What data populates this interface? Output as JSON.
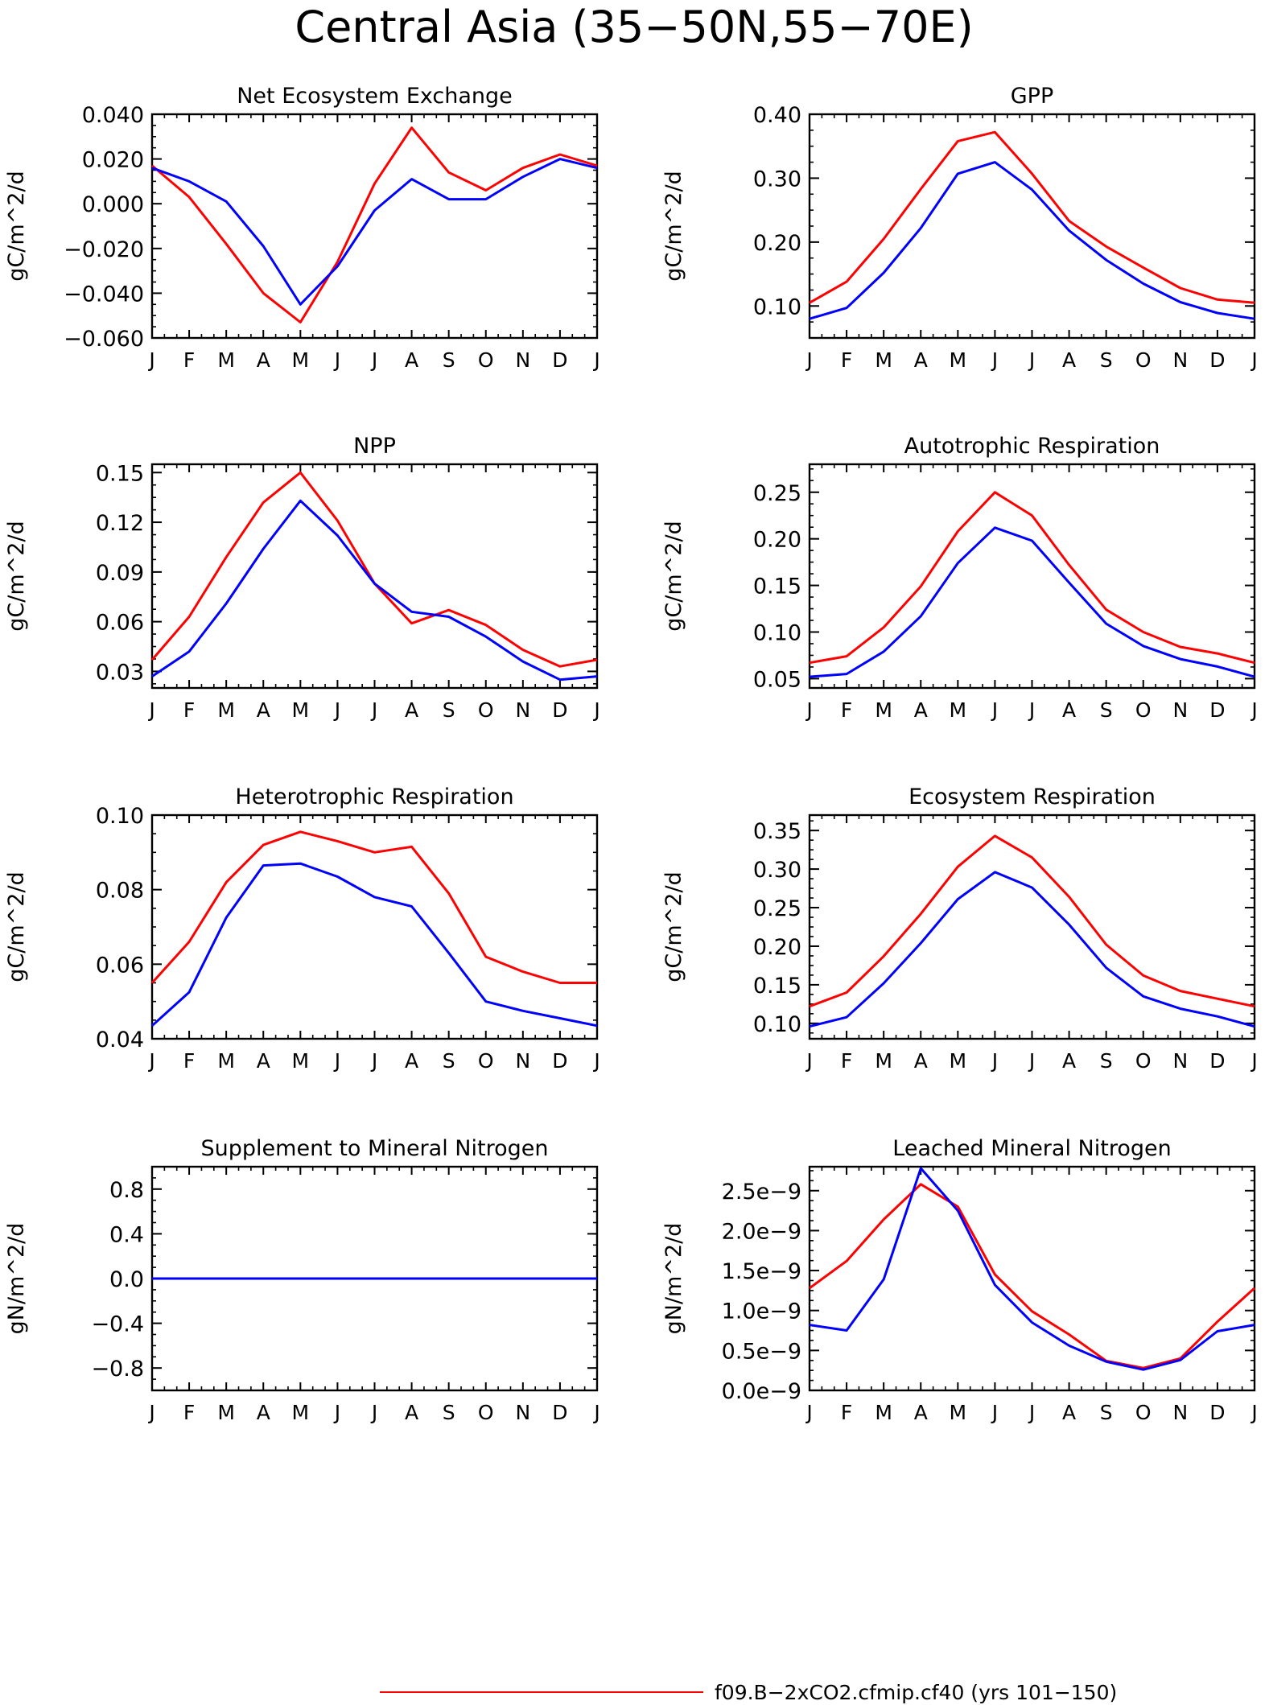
{
  "figure_title": "Central Asia (35−50N,55−70E)",
  "months": [
    "J",
    "F",
    "M",
    "A",
    "M",
    "J",
    "J",
    "A",
    "S",
    "O",
    "N",
    "D",
    "J"
  ],
  "legend": {
    "entries": [
      {
        "label": "f09.B−2xCO2.cfmip.cf40 (yrs 101−150)",
        "color": "#ff0000"
      }
    ]
  },
  "colors": {
    "series_a": "#ff0000",
    "series_b": "#0000ff",
    "axis": "#000000"
  },
  "chart_data": [
    {
      "type": "line",
      "title": "Net Ecosystem Exchange",
      "ylabel": "gC/m^2/d",
      "ylim": [
        -0.06,
        0.04
      ],
      "yticks": [
        -0.06,
        -0.04,
        -0.02,
        0.0,
        0.02,
        0.04
      ],
      "ytick_labels": [
        "−0.060",
        "−0.040",
        "−0.020",
        "0.000",
        "0.020",
        "0.040"
      ],
      "series": [
        {
          "color": "#ff0000",
          "values": [
            0.017,
            0.003,
            -0.018,
            -0.04,
            -0.053,
            -0.026,
            0.009,
            0.034,
            0.014,
            0.006,
            0.016,
            0.022,
            0.017
          ]
        },
        {
          "color": "#0000ff",
          "values": [
            0.016,
            0.01,
            0.001,
            -0.019,
            -0.045,
            -0.028,
            -0.003,
            0.011,
            0.002,
            0.002,
            0.012,
            0.02,
            0.016
          ]
        }
      ]
    },
    {
      "type": "line",
      "title": "GPP",
      "ylabel": "gC/m^2/d",
      "ylim": [
        0.05,
        0.4
      ],
      "yticks": [
        0.1,
        0.2,
        0.3,
        0.4
      ],
      "ytick_labels": [
        "0.10",
        "0.20",
        "0.30",
        "0.40"
      ],
      "series": [
        {
          "color": "#ff0000",
          "values": [
            0.105,
            0.138,
            0.205,
            0.283,
            0.358,
            0.372,
            0.307,
            0.233,
            0.193,
            0.16,
            0.128,
            0.11,
            0.105
          ]
        },
        {
          "color": "#0000ff",
          "values": [
            0.08,
            0.097,
            0.152,
            0.222,
            0.307,
            0.325,
            0.282,
            0.218,
            0.172,
            0.135,
            0.106,
            0.089,
            0.08
          ]
        }
      ]
    },
    {
      "type": "line",
      "title": "NPP",
      "ylabel": "gC/m^2/d",
      "ylim": [
        0.02,
        0.155
      ],
      "yticks": [
        0.03,
        0.06,
        0.09,
        0.12,
        0.15
      ],
      "ytick_labels": [
        "0.03",
        "0.06",
        "0.09",
        "0.12",
        "0.15"
      ],
      "series": [
        {
          "color": "#ff0000",
          "values": [
            0.037,
            0.063,
            0.099,
            0.132,
            0.15,
            0.121,
            0.083,
            0.059,
            0.067,
            0.058,
            0.043,
            0.033,
            0.037
          ]
        },
        {
          "color": "#0000ff",
          "values": [
            0.027,
            0.042,
            0.071,
            0.104,
            0.133,
            0.112,
            0.083,
            0.066,
            0.063,
            0.051,
            0.036,
            0.025,
            0.027
          ]
        }
      ]
    },
    {
      "type": "line",
      "title": "Autotrophic Respiration",
      "ylabel": "gC/m^2/d",
      "ylim": [
        0.04,
        0.28
      ],
      "yticks": [
        0.05,
        0.1,
        0.15,
        0.2,
        0.25
      ],
      "ytick_labels": [
        "0.05",
        "0.10",
        "0.15",
        "0.20",
        "0.25"
      ],
      "series": [
        {
          "color": "#ff0000",
          "values": [
            0.067,
            0.074,
            0.105,
            0.149,
            0.208,
            0.25,
            0.225,
            0.172,
            0.124,
            0.1,
            0.084,
            0.077,
            0.067
          ]
        },
        {
          "color": "#0000ff",
          "values": [
            0.052,
            0.055,
            0.079,
            0.117,
            0.174,
            0.212,
            0.198,
            0.153,
            0.109,
            0.085,
            0.071,
            0.063,
            0.052
          ]
        }
      ]
    },
    {
      "type": "line",
      "title": "Heterotrophic Respiration",
      "ylabel": "gC/m^2/d",
      "ylim": [
        0.04,
        0.1
      ],
      "yticks": [
        0.04,
        0.06,
        0.08,
        0.1
      ],
      "ytick_labels": [
        "0.04",
        "0.06",
        "0.08",
        "0.10"
      ],
      "series": [
        {
          "color": "#ff0000",
          "values": [
            0.055,
            0.066,
            0.082,
            0.092,
            0.0955,
            0.093,
            0.09,
            0.0915,
            0.079,
            0.062,
            0.058,
            0.055,
            0.055
          ]
        },
        {
          "color": "#0000ff",
          "values": [
            0.0435,
            0.0525,
            0.0725,
            0.0865,
            0.087,
            0.0835,
            0.078,
            0.0755,
            0.063,
            0.05,
            0.0475,
            0.0455,
            0.0435
          ]
        }
      ]
    },
    {
      "type": "line",
      "title": "Ecosystem Respiration",
      "ylabel": "gC/m^2/d",
      "ylim": [
        0.08,
        0.37
      ],
      "yticks": [
        0.1,
        0.15,
        0.2,
        0.25,
        0.3,
        0.35
      ],
      "ytick_labels": [
        "0.10",
        "0.15",
        "0.20",
        "0.25",
        "0.30",
        "0.35"
      ],
      "series": [
        {
          "color": "#ff0000",
          "values": [
            0.122,
            0.14,
            0.187,
            0.242,
            0.303,
            0.343,
            0.315,
            0.264,
            0.202,
            0.162,
            0.142,
            0.132,
            0.122
          ]
        },
        {
          "color": "#0000ff",
          "values": [
            0.096,
            0.108,
            0.152,
            0.204,
            0.261,
            0.296,
            0.276,
            0.228,
            0.172,
            0.135,
            0.119,
            0.109,
            0.096
          ]
        }
      ]
    },
    {
      "type": "line",
      "title": "Supplement to Mineral Nitrogen",
      "ylabel": "gN/m^2/d",
      "ylim": [
        -1.0,
        1.0
      ],
      "yticks": [
        -0.8,
        -0.4,
        0.0,
        0.4,
        0.8
      ],
      "ytick_labels": [
        "−0.8",
        "−0.4",
        "0.0",
        "0.4",
        "0.8"
      ],
      "series": [
        {
          "color": "#ff0000",
          "values": [
            0,
            0,
            0,
            0,
            0,
            0,
            0,
            0,
            0,
            0,
            0,
            0,
            0
          ]
        },
        {
          "color": "#0000ff",
          "values": [
            0,
            0,
            0,
            0,
            0,
            0,
            0,
            0,
            0,
            0,
            0,
            0,
            0
          ]
        }
      ]
    },
    {
      "type": "line",
      "title": "Leached Mineral Nitrogen",
      "ylabel": "gN/m^2/d",
      "ylim": [
        0.0,
        2.8e-09
      ],
      "yticks": [
        0.0,
        5e-10,
        1e-09,
        1.5e-09,
        2e-09,
        2.5e-09
      ],
      "ytick_labels": [
        "0.0e−9",
        "0.5e−9",
        "1.0e−9",
        "1.5e−9",
        "2.0e−9",
        "2.5e−9"
      ],
      "series": [
        {
          "color": "#ff0000",
          "values": [
            1.28e-09,
            1.62e-09,
            2.14e-09,
            2.58e-09,
            2.3e-09,
            1.45e-09,
            9.9e-10,
            7e-10,
            3.7e-10,
            2.8e-10,
            4e-10,
            8.6e-10,
            1.28e-09
          ]
        },
        {
          "color": "#0000ff",
          "values": [
            8.2e-10,
            7.5e-10,
            1.39e-09,
            2.78e-09,
            2.25e-09,
            1.32e-09,
            8.5e-10,
            5.6e-10,
            3.6e-10,
            2.6e-10,
            3.8e-10,
            7.4e-10,
            8.2e-10
          ]
        }
      ]
    }
  ]
}
